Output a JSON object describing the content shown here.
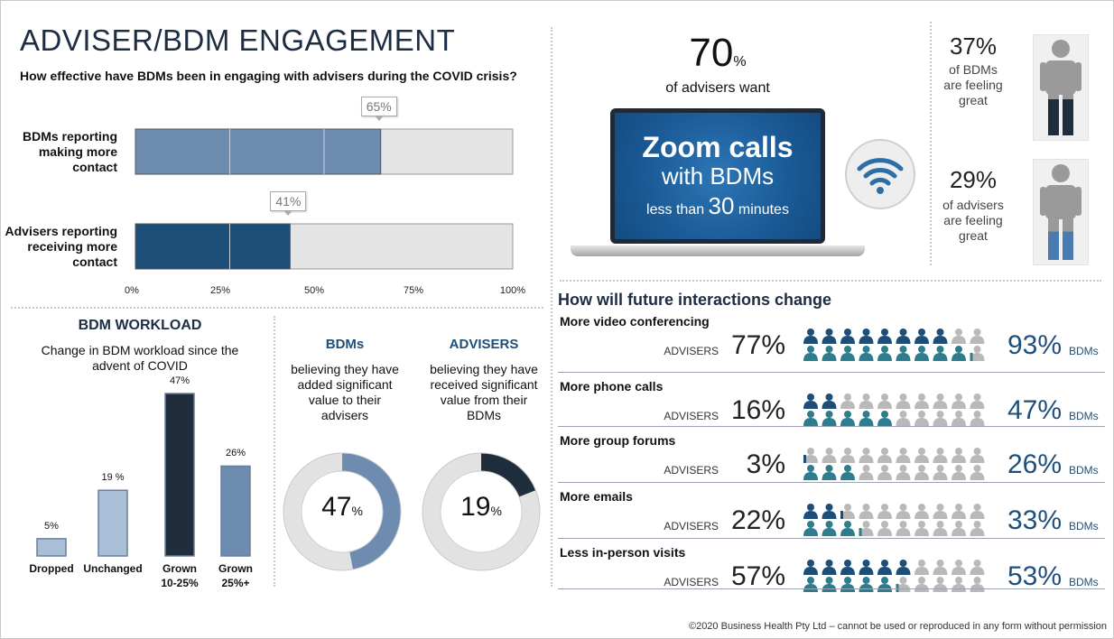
{
  "title": "ADVISER/BDM ENGAGEMENT",
  "subtitle": "How effective have BDMs been in engaging with advisers during the COVID crisis?",
  "colors": {
    "dark_navy": "#1f2d3d",
    "mid_blue": "#6d8cb0",
    "dark_blue": "#1d4e78",
    "light_blue": "#a9bfd8",
    "teal": "#2e7d8f",
    "grey": "#b5b5b5"
  },
  "engagement": {
    "rows": [
      {
        "label": "BDMs reporting making more contact",
        "label_lines": [
          "BDMs reporting",
          "making more",
          "contact"
        ],
        "value": 65,
        "value_label": "65%"
      },
      {
        "label": "Advisers reporting receiving more contact",
        "label_lines": [
          "Advisers reporting",
          "receiving more",
          "contact"
        ],
        "value": 41,
        "value_label": "41%"
      }
    ],
    "ticks": [
      "0%",
      "25%",
      "50%",
      "75%",
      "100%"
    ]
  },
  "workload": {
    "title": "BDM WORKLOAD",
    "subtitle_lines": [
      "Change in BDM workload since the",
      "advent of COVID"
    ],
    "columns": [
      {
        "category": "Dropped",
        "cat_lines": [
          "Dropped"
        ],
        "value": 5,
        "value_label": "5%"
      },
      {
        "category": "Unchanged",
        "cat_lines": [
          "Unchanged"
        ],
        "value": 19,
        "value_label": "19 %"
      },
      {
        "category": "Grown 10-25%",
        "cat_lines": [
          "Grown",
          "10-25%"
        ],
        "value": 47,
        "value_label": "47%"
      },
      {
        "category": "Grown 25%+",
        "cat_lines": [
          "Grown",
          "25%+"
        ],
        "value": 26,
        "value_label": "26%"
      }
    ]
  },
  "value_donuts": [
    {
      "heading": "BDMs",
      "desc_lines": [
        "believing they have",
        "added significant",
        "value to their",
        "advisers"
      ],
      "value": 47,
      "value_num": "47",
      "unit": "%"
    },
    {
      "heading": "ADVISERS",
      "desc_lines": [
        "believing they have",
        "received significant",
        "value from their",
        "BDMs"
      ],
      "value": 19,
      "value_num": "19",
      "unit": "%"
    }
  ],
  "zoom": {
    "pct_num": "70",
    "pct_unit": "%",
    "caption": "of advisers want",
    "line1": "Zoom calls",
    "line2": "with BDMs",
    "line3_pre": "less than",
    "line3_num": "30",
    "line3_post": "minutes",
    "icon": "wifi-icon"
  },
  "feeling": [
    {
      "pct": "37%",
      "lines": [
        "of BDMs",
        "are feeling",
        "great"
      ],
      "icon": "person-icon-dark",
      "fill": 0.37
    },
    {
      "pct": "29%",
      "lines": [
        "of advisers",
        "are feeling",
        "great"
      ],
      "icon": "person-icon-blue",
      "fill": 0.29
    }
  ],
  "future": {
    "heading": "How will future interactions change",
    "adviser_label": "ADVISERS",
    "bdm_label": "BDMs",
    "rows": [
      {
        "label": "More video conferencing",
        "advisers": 77,
        "advisers_label": "77%",
        "bdms": 93,
        "bdms_label": "93%"
      },
      {
        "label": "More phone calls",
        "advisers": 16,
        "advisers_label": "16%",
        "bdms": 47,
        "bdms_label": "47%"
      },
      {
        "label": "More group forums",
        "advisers": 3,
        "advisers_label": "3%",
        "bdms": 26,
        "bdms_label": "26%"
      },
      {
        "label": "More emails",
        "advisers": 22,
        "advisers_label": "22%",
        "bdms": 33,
        "bdms_label": "33%"
      },
      {
        "label": "Less in-person visits",
        "advisers": 57,
        "advisers_label": "57%",
        "bdms": 53,
        "bdms_label": "53%"
      }
    ]
  },
  "chart_data": [
    {
      "type": "bar",
      "orientation": "horizontal",
      "title": "How effective have BDMs been in engaging with advisers during the COVID crisis?",
      "categories": [
        "BDMs reporting making more contact",
        "Advisers reporting receiving more contact"
      ],
      "values": [
        65,
        41
      ],
      "xlim": [
        0,
        100
      ]
    },
    {
      "type": "bar",
      "title": "BDM WORKLOAD",
      "subtitle": "Change in BDM workload since the advent of COVID",
      "categories": [
        "Dropped",
        "Unchanged",
        "Grown 10-25%",
        "Grown 25%+"
      ],
      "values": [
        5,
        19,
        47,
        26
      ]
    },
    {
      "type": "pie",
      "title": "BDMs",
      "values": [
        47,
        53
      ]
    },
    {
      "type": "pie",
      "title": "ADVISERS",
      "values": [
        19,
        81
      ]
    },
    {
      "type": "bar",
      "title": "How will future interactions change",
      "categories": [
        "More video conferencing",
        "More phone calls",
        "More group forums",
        "More emails",
        "Less in-person visits"
      ],
      "series": [
        {
          "name": "ADVISERS",
          "values": [
            77,
            16,
            3,
            22,
            57
          ]
        },
        {
          "name": "BDMs",
          "values": [
            93,
            47,
            26,
            33,
            53
          ]
        }
      ]
    }
  ],
  "footer": "©2020 Business Health Pty Ltd – cannot be used or reproduced in any form without permission"
}
